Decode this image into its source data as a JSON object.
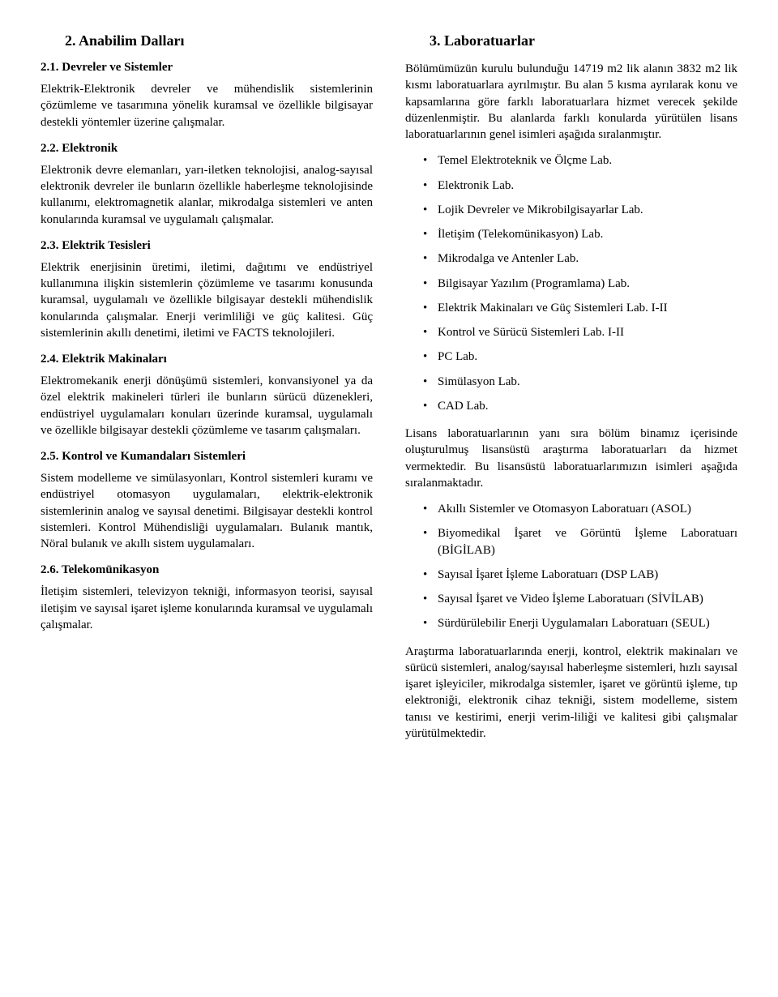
{
  "left": {
    "title": "2. Anabilim Dalları",
    "sections": [
      {
        "head": "2.1. Devreler ve Sistemler",
        "body": "Elektrik-Elektronik devreler ve mühendislik sistemlerinin çözümleme ve tasarımına yönelik kuramsal ve özellikle bilgisayar destekli yöntemler üzerine çalışmalar."
      },
      {
        "head": "2.2. Elektronik",
        "body": "Elektronik devre elemanları, yarı-iletken teknolojisi, analog-sayısal elektronik devreler ile bunların özellikle haberleşme teknolojisinde kullanımı, elektromagnetik alanlar, mikrodalga sistemleri ve anten konularında kuramsal ve uygulamalı çalışmalar."
      },
      {
        "head": "2.3. Elektrik Tesisleri",
        "body": "Elektrik enerjisinin üretimi, iletimi, dağıtımı ve endüstriyel kullanımına ilişkin sistemlerin çözümleme ve tasarımı konusunda kuramsal, uygulamalı ve özellikle bilgisayar destekli mühendislik konularında çalışmalar. Enerji verimliliği ve güç kalitesi. Güç sistemlerinin akıllı denetimi, iletimi ve FACTS teknolojileri."
      },
      {
        "head": "2.4. Elektrik Makinaları",
        "body": "Elektromekanik enerji dönüşümü sistemleri, konvansiyonel ya da özel elektrik makineleri türleri ile bunların sürücü düzenekleri, endüstriyel uygulamaları konuları üzerinde kuramsal, uygulamalı ve özellikle bilgisayar destekli çözümleme ve tasarım çalışmaları."
      },
      {
        "head": "2.5. Kontrol ve Kumandaları Sistemleri",
        "body": "Sistem modelleme ve simülasyonları, Kontrol sistemleri kuramı ve endüstriyel otomasyon uygulamaları, elektrik-elektronik sistemlerinin analog ve sayısal denetimi. Bilgisayar destekli kontrol sistemleri. Kontrol Mühendisliği uygulamaları. Bulanık mantık, Nöral bulanık ve akıllı sistem uygulamaları."
      },
      {
        "head": "2.6. Telekomünikasyon",
        "body": "İletişim sistemleri, televizyon tekniği, informasyon teorisi, sayısal iletişim ve sayısal işaret işleme konularında kuramsal ve uygulamalı çalışmalar."
      }
    ]
  },
  "right": {
    "title": "3. Laboratuarlar",
    "intro": "Bölümümüzün kurulu bulunduğu 14719 m2 lik alanın 3832 m2 lik kısmı laboratuarlara ayrılmıştır. Bu alan 5 kısma ayrılarak konu ve kapsamlarına göre farklı laboratuarlara hizmet verecek şekilde düzenlenmiştir. Bu alanlarda farklı konularda yürütülen lisans laboratuarlarının genel isimleri aşağıda sıralanmıştır.",
    "labs1": [
      "Temel Elektroteknik ve Ölçme Lab.",
      "Elektronik Lab.",
      "Lojik Devreler ve Mikrobilgisayarlar Lab.",
      "İletişim (Telekomünikasyon) Lab.",
      "Mikrodalga ve Antenler Lab.",
      "Bilgisayar Yazılım (Programlama) Lab.",
      "Elektrik Makinaları ve Güç Sistemleri Lab. I-II",
      "Kontrol ve Sürücü Sistemleri Lab. I-II",
      "PC Lab.",
      "Simülasyon Lab.",
      "CAD Lab."
    ],
    "mid": "Lisans laboratuarlarının yanı sıra bölüm binamız içerisinde oluşturulmuş lisansüstü araştırma laboratuarları da hizmet vermektedir. Bu lisansüstü laboratuarlarımızın isimleri aşağıda sıralanmaktadır.",
    "labs2": [
      "Akıllı Sistemler ve Otomasyon Laboratuarı (ASOL)",
      "Biyomedikal İşaret ve Görüntü İşleme Laboratuarı (BİGİLAB)",
      "Sayısal İşaret İşleme Laboratuarı (DSP LAB)",
      "Sayısal İşaret ve Video İşleme Laboratuarı (SİVİLAB)",
      "Sürdürülebilir Enerji Uygulamaları Laboratuarı (SEUL)"
    ],
    "outro": "Araştırma laboratuarlarında enerji, kontrol, elektrik makinaları ve sürücü sistemleri, analog/sayısal haberleşme sistemleri, hızlı sayısal işaret işleyiciler, mikrodalga sistemler, işaret ve görüntü işleme, tıp elektroniği, elektronik cihaz tekniği, sistem modelleme, sistem tanısı ve kestirimi, enerji verim-liliği ve kalitesi gibi çalışmalar yürütülmektedir."
  }
}
